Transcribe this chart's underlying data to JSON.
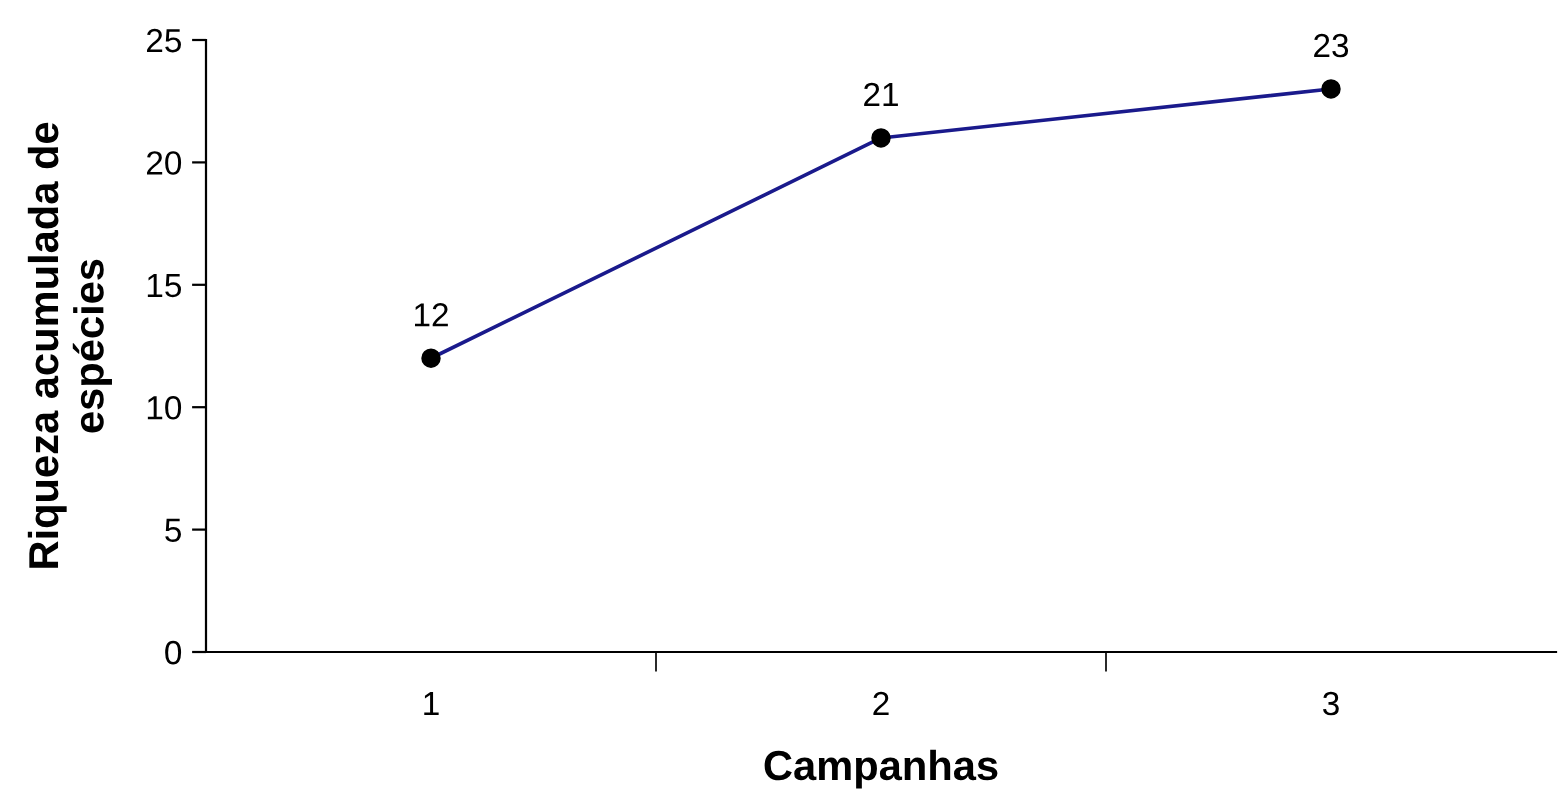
{
  "chart_data": {
    "type": "line",
    "xlabel": "Campanhas",
    "ylabel": "Riqueza acumulada de\nespécies",
    "categories": [
      "1",
      "2",
      "3"
    ],
    "series": [
      {
        "color": "#1a1a8c",
        "values": [
          12,
          21,
          23
        ]
      }
    ],
    "ylim": [
      0,
      25
    ],
    "yticks": [
      0,
      5,
      10,
      15,
      20,
      25
    ],
    "data_labels": true,
    "marker": "circle",
    "line_style": "solid",
    "grid": false,
    "legend": false
  }
}
